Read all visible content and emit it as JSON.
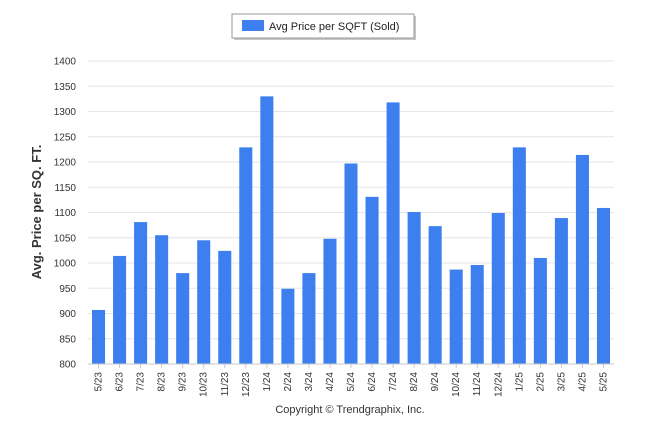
{
  "chart_data": {
    "type": "bar",
    "ylabel": "Avg. Price per SQ. FT.",
    "xlabel": "",
    "ylim": [
      800,
      1400
    ],
    "yticks": [
      800,
      850,
      900,
      950,
      1000,
      1050,
      1100,
      1150,
      1200,
      1250,
      1300,
      1350,
      1400
    ],
    "grid": true,
    "legend_position": "top-center",
    "categories": [
      "5/23",
      "6/23",
      "7/23",
      "8/23",
      "9/23",
      "10/23",
      "11/23",
      "12/23",
      "1/24",
      "2/24",
      "3/24",
      "4/24",
      "5/24",
      "6/24",
      "7/24",
      "8/24",
      "9/24",
      "10/24",
      "11/24",
      "12/24",
      "1/25",
      "2/25",
      "3/25",
      "4/25",
      "5/25"
    ],
    "series": [
      {
        "name": "Avg Price per SQFT (Sold)",
        "color": "#3d7fef",
        "values": [
          907,
          1014,
          1081,
          1055,
          980,
          1045,
          1024,
          1229,
          1330,
          949,
          980,
          1048,
          1197,
          1131,
          1318,
          1101,
          1073,
          987,
          996,
          1099,
          1229,
          1010,
          1089,
          1214,
          1109
        ]
      }
    ]
  },
  "footer": {
    "copyright": "Copyright © Trendgraphix, Inc."
  }
}
